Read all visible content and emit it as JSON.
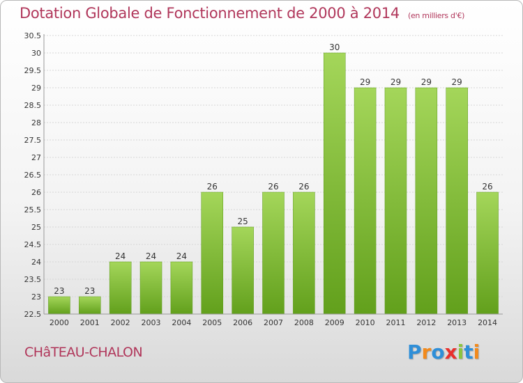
{
  "chart_data": {
    "type": "bar",
    "title": "Dotation Globale de Fonctionnement de 2000 à 2014",
    "subtitle": "(en milliers d'€)",
    "categories": [
      "2000",
      "2001",
      "2002",
      "2003",
      "2004",
      "2005",
      "2006",
      "2007",
      "2008",
      "2009",
      "2010",
      "2011",
      "2012",
      "2013",
      "2014"
    ],
    "values": [
      23,
      23,
      24,
      24,
      24,
      26,
      25,
      26,
      26,
      30,
      29,
      29,
      29,
      29,
      26
    ],
    "data_labels": [
      "23",
      "23",
      "24",
      "24",
      "24",
      "26",
      "25",
      "26",
      "26",
      "30",
      "29",
      "29",
      "29",
      "29",
      "26"
    ],
    "ylim": [
      22.5,
      30.5
    ],
    "yticks": [
      "22.5",
      "23",
      "23.5",
      "24",
      "24.5",
      "25",
      "25.5",
      "26",
      "26.5",
      "27",
      "27.5",
      "28",
      "28.5",
      "29",
      "29.5",
      "30",
      "30.5"
    ],
    "grid": true,
    "xlabel": "",
    "ylabel": ""
  },
  "commune": "CHâTEAU-CHALON",
  "logo": {
    "letters": [
      "P",
      "r",
      "o",
      "x",
      "i",
      "t",
      "i"
    ],
    "colors": [
      "#2f8fd8",
      "#f28a1c",
      "#2f8fd8",
      "#e8302d",
      "#8cc43f",
      "#2f8fd8",
      "#f28a1c"
    ]
  },
  "colors": {
    "accent": "#b0365a",
    "bar_light": "#a4d65a",
    "bar_dark": "#62a01c"
  }
}
